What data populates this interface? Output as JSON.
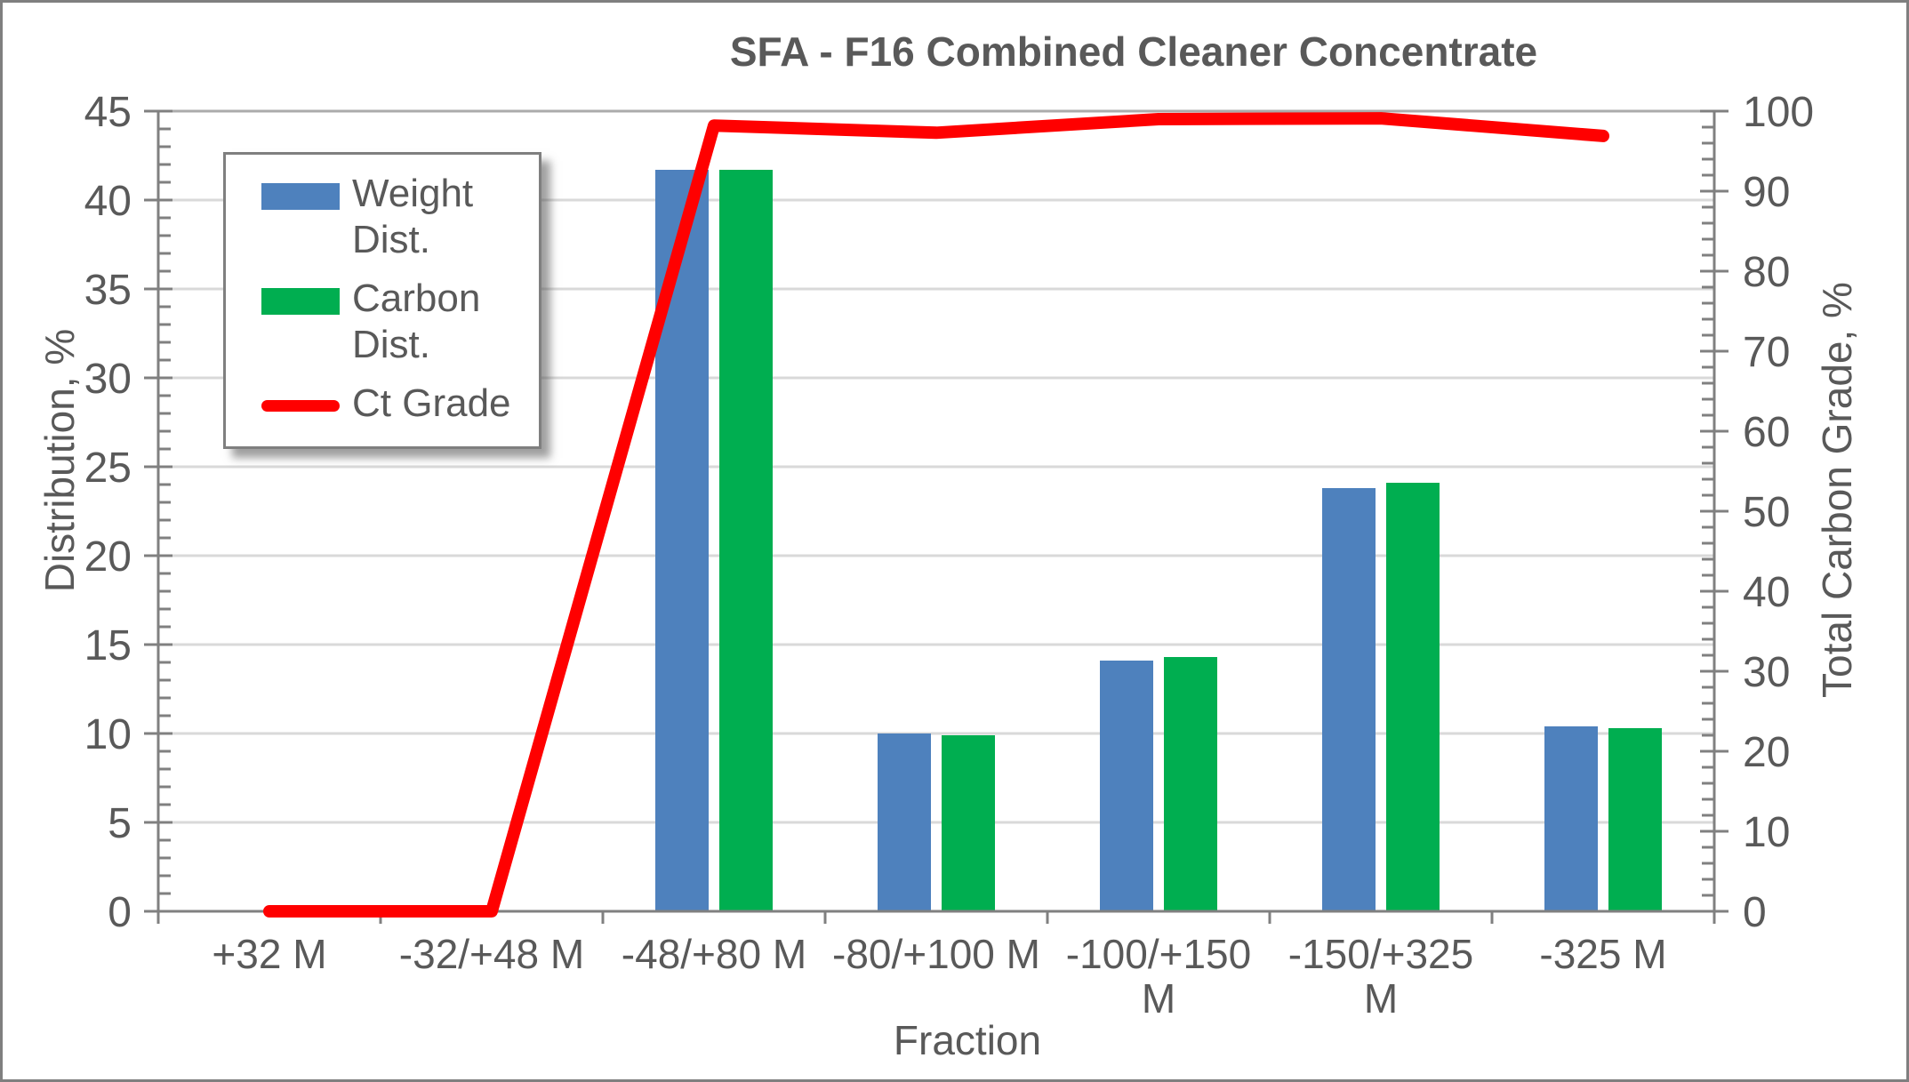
{
  "title": "SFA - F16 Combined Cleaner Concentrate",
  "chart_data": {
    "type": "bar",
    "subtype": "grouped bars with overlaid line (dual axis)",
    "title": "SFA - F16 Combined Cleaner Concentrate",
    "categories": [
      "+32 M",
      "-32/+48 M",
      "-48/+80 M",
      "-80/+100 M",
      "-100/+150\nM",
      "-150/+325\nM",
      "-325 M"
    ],
    "series": [
      {
        "name": "Weight Dist.",
        "kind": "bar",
        "axis": "left",
        "color": "#4E81BD",
        "values": [
          0,
          0,
          41.7,
          10.0,
          14.1,
          23.8,
          10.4
        ]
      },
      {
        "name": "Carbon Dist.",
        "kind": "bar",
        "axis": "left",
        "color": "#00AE50",
        "values": [
          0,
          0,
          41.7,
          9.9,
          14.3,
          24.1,
          10.3
        ]
      },
      {
        "name": "Ct Grade",
        "kind": "line",
        "axis": "right",
        "color": "#FF0000",
        "values": [
          0,
          0,
          98.2,
          97.3,
          99.0,
          99.1,
          96.9
        ]
      }
    ],
    "xlabel": "Fraction",
    "ylabel": "Distribution, %",
    "y2label": "Total Carbon Grade, %",
    "ylim": [
      0,
      45
    ],
    "y2lim": [
      0,
      100
    ],
    "yticks": [
      0,
      5,
      10,
      15,
      20,
      25,
      30,
      35,
      40,
      45
    ],
    "y2ticks": [
      0,
      10,
      20,
      30,
      40,
      50,
      60,
      70,
      80,
      90,
      100
    ],
    "yminor_step": 1,
    "y2minor_step": 2,
    "grid": "horizontal major gridlines",
    "legend_position": "inside top-left"
  },
  "colors": {
    "text": "#595959",
    "gridline": "#D9D9D9",
    "top_gridline": "#ABABAB",
    "axis_line": "#808080",
    "frame_border": "#7F7F7F",
    "background": "#FFFFFF",
    "bar_blue": "#4E81BD",
    "bar_green": "#00AE50",
    "line_red": "#FF0000"
  }
}
